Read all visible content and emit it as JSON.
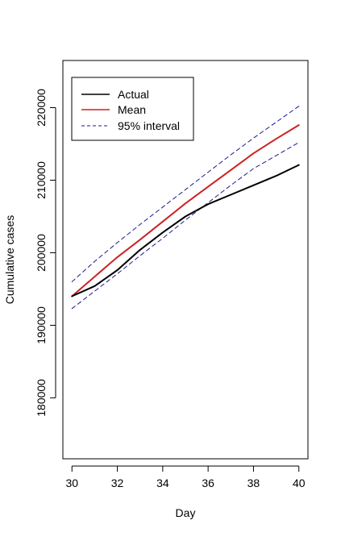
{
  "chart_data": {
    "type": "line",
    "title": "",
    "xlabel": "Day",
    "ylabel": "Cumulative cases",
    "xlim": [
      29.6,
      40.4
    ],
    "ylim": [
      171600,
      226500
    ],
    "x_ticks": [
      30,
      32,
      34,
      36,
      38,
      40
    ],
    "x_tick_labels": [
      "30",
      "32",
      "34",
      "36",
      "38",
      "40"
    ],
    "y_ticks": [
      180000,
      190000,
      200000,
      210000,
      220000
    ],
    "y_tick_labels": [
      "180000",
      "190000",
      "200000",
      "210000",
      "220000"
    ],
    "grid": false,
    "legend_position": "top-left",
    "legend_items": [
      "Actual",
      "Mean",
      "95% interval"
    ],
    "x": [
      30,
      31,
      32,
      33,
      34,
      35,
      36,
      37,
      38,
      39,
      40
    ],
    "series": [
      {
        "name": "Actual",
        "color": "#000000",
        "style": "solid",
        "width": 2,
        "values": [
          194000,
          195400,
          197600,
          200400,
          202800,
          205000,
          206700,
          208000,
          209300,
          210600,
          212100
        ]
      },
      {
        "name": "Mean",
        "color": "#cc2222",
        "style": "solid",
        "width": 2,
        "values": [
          194000,
          196700,
          199400,
          201800,
          204300,
          206800,
          209100,
          211400,
          213700,
          215700,
          217600
        ]
      },
      {
        "name": "95% interval",
        "color": "#1a1a8c",
        "style": "dashed",
        "width": 1,
        "values": [
          196000,
          198800,
          201400,
          203900,
          206300,
          208700,
          211100,
          213500,
          215800,
          218000,
          220200
        ]
      },
      {
        "name": "95% interval",
        "color": "#1a1a8c",
        "style": "dashed",
        "width": 1,
        "values": [
          192300,
          194700,
          197100,
          199600,
          202000,
          204500,
          206900,
          209300,
          211600,
          213400,
          215200
        ]
      }
    ]
  }
}
